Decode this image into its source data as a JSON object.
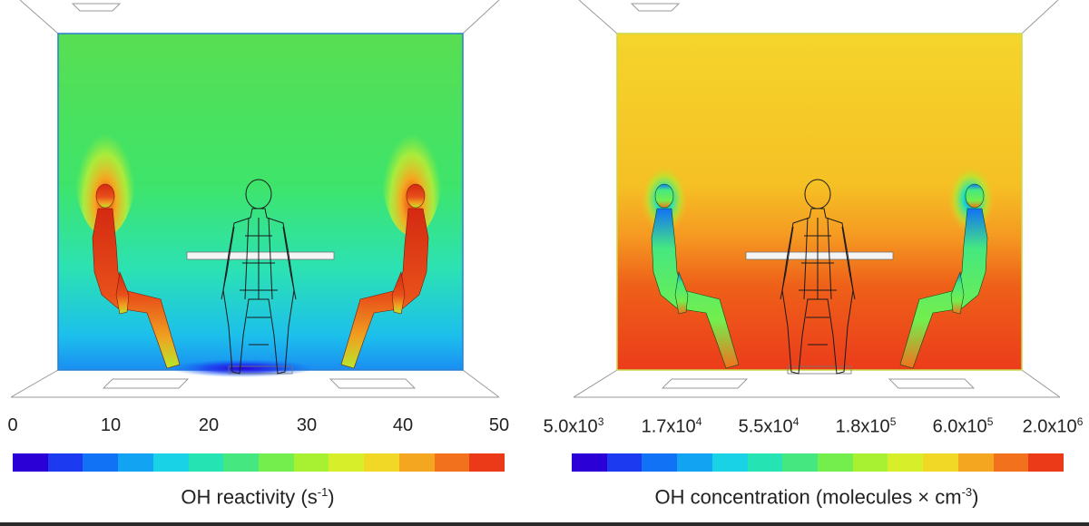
{
  "panels": [
    {
      "id": "left",
      "colorbar": {
        "ticks": [
          "0",
          "10",
          "20",
          "30",
          "40",
          "50"
        ],
        "label_main": "OH reactivity (s",
        "label_sup": "-1",
        "label_end": ")"
      }
    },
    {
      "id": "right",
      "colorbar": {
        "ticks": [
          {
            "mant": "5.0x10",
            "exp": "3"
          },
          {
            "mant": "1.7x10",
            "exp": "4"
          },
          {
            "mant": "5.5x10",
            "exp": "4"
          },
          {
            "mant": "1.8x10",
            "exp": "5"
          },
          {
            "mant": "6.0x10",
            "exp": "5"
          },
          {
            "mant": "2.0x10",
            "exp": "6"
          }
        ],
        "label_main": "OH concentration (molecules × cm",
        "label_sup": "-3",
        "label_end": ")"
      }
    }
  ],
  "colormap": [
    "#2b00d6",
    "#1c3af0",
    "#1272f5",
    "#12a3f2",
    "#19d2e6",
    "#26e3b4",
    "#45e880",
    "#73ee4d",
    "#a8f032",
    "#d6ef2a",
    "#f2d826",
    "#f5a621",
    "#f2711c",
    "#ea3a17"
  ],
  "colors": {
    "left_top": "#4fdf55",
    "left_mid": "#2fe0b0",
    "left_bottom": "#1aa6ee",
    "right_top": "#f4d22c",
    "right_mid": "#f5a421",
    "right_bottom": "#ec3c1a"
  }
}
